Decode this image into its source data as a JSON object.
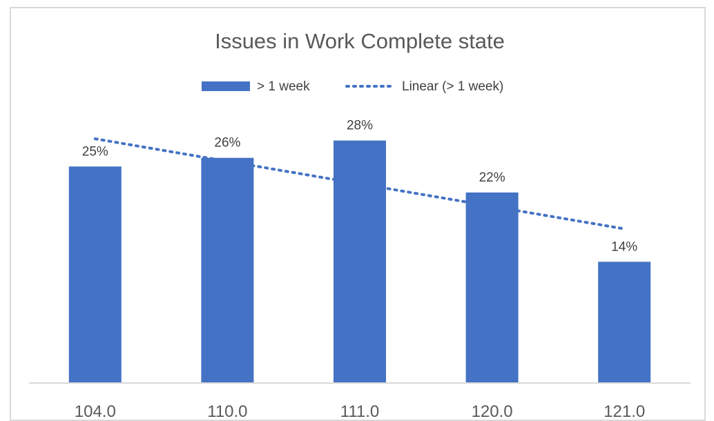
{
  "chart_data": {
    "type": "bar",
    "title": "Issues in Work Complete state",
    "categories": [
      "104.0",
      "110.0",
      "111.0",
      "120.0",
      "121.0"
    ],
    "series": [
      {
        "name": "> 1 week",
        "values": [
          25,
          26,
          28,
          22,
          14
        ],
        "labels": [
          "25%",
          "26%",
          "28%",
          "22%",
          "14%"
        ],
        "color": "#4472c4"
      }
    ],
    "trendline": {
      "name": "Linear (> 1 week)",
      "type": "linear",
      "of_series": "> 1 week",
      "color": "#4472c4",
      "style": "dotted"
    },
    "xlabel": "",
    "ylabel": "",
    "ylim": [
      0,
      30
    ],
    "grid": false,
    "legend_position": "top"
  }
}
